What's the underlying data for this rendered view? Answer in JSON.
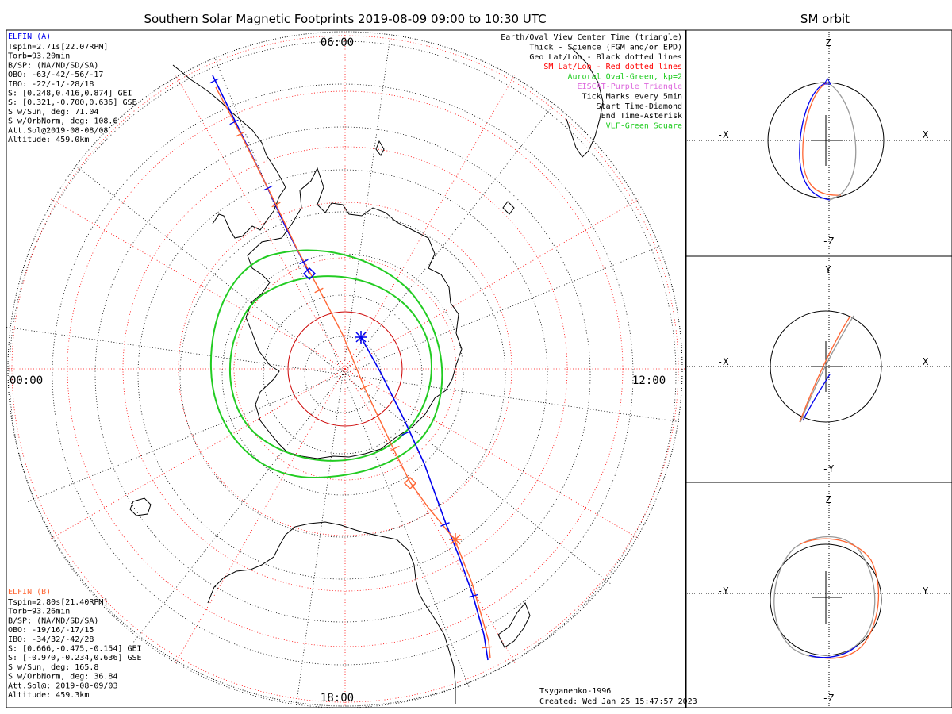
{
  "main_title": "Southern Solar Magnetic Footprints 2019-08-09 09:00 to 10:30 UTC",
  "orbit_title": "SM orbit",
  "map": {
    "mlt_labels": {
      "top": "06:00",
      "left": "00:00",
      "right": "12:00",
      "bottom": "18:00"
    }
  },
  "legend": [
    {
      "text": "Earth/Oval View Center Time (triangle)",
      "color": "#000000"
    },
    {
      "text": "Thick - Science (FGM and/or EPD)",
      "color": "#000000"
    },
    {
      "text": "Geo Lat/Lon - Black dotted lines",
      "color": "#000000"
    },
    {
      "text": "SM Lat/Lon - Red dotted lines",
      "color": "#ff0000"
    },
    {
      "text": "Auroral Oval-Green, kp=2",
      "color": "#22cc22"
    },
    {
      "text": "EISCAT-Purple Triangle",
      "color": "#dd66dd"
    },
    {
      "text": "Tick Marks every 5min",
      "color": "#000000"
    },
    {
      "text": "Start Time-Diamond",
      "color": "#000000"
    },
    {
      "text": "End Time-Asterisk",
      "color": "#000000"
    },
    {
      "text": "VLF-Green Square",
      "color": "#22cc22"
    }
  ],
  "elfin_a": {
    "name": "ELFIN (A)",
    "color": "#0000ee",
    "lines": [
      "Tspin=2.71s[22.07RPM]",
      "Torb=93.20min",
      "B/SP: (NA/ND/SD/SA)",
      "OBO: -63/-42/-56/-17",
      "IBO: -22/-1/-28/18",
      "S: [0.248,0.416,0.874] GEI",
      "S: [0.321,-0.700,0.636] GSE",
      "S w/Sun, deg: 71.04",
      "S w/OrbNorm, deg: 108.6",
      "Att.Sol@2019-08-08/08",
      "Altitude: 459.0km"
    ]
  },
  "elfin_b": {
    "name": "ELFIN (B)",
    "color": "#ff6633",
    "lines": [
      "Tspin=2.80s[21.40RPM]",
      "Torb=93.26min",
      "B/SP: (NA/ND/SD/SA)",
      "OBO: -19/16/-17/15",
      "IBO: -34/32/-42/28",
      "S: [0.666,-0.475,-0.154] GEI",
      "S: [-0.970,-0.234,0.636] GSE",
      "S w/Sun, deg: 165.8",
      "S w/OrbNorm, deg: 36.84",
      "Att.Sol@: 2019-08-09/03",
      "Altitude: 459.3km"
    ]
  },
  "footer": {
    "model": "Tsyganenko-1996",
    "created": "Created: Wed Jan 25 15:47:57 2023"
  },
  "orbit_panels": [
    {
      "left": "-X",
      "right": "X",
      "top": "Z",
      "bottom": "-Z"
    },
    {
      "left": "-X",
      "right": "X",
      "top": "Y",
      "bottom": "-Y"
    },
    {
      "left": "-Y",
      "right": "Y",
      "top": "Z",
      "bottom": "-Z"
    }
  ]
}
